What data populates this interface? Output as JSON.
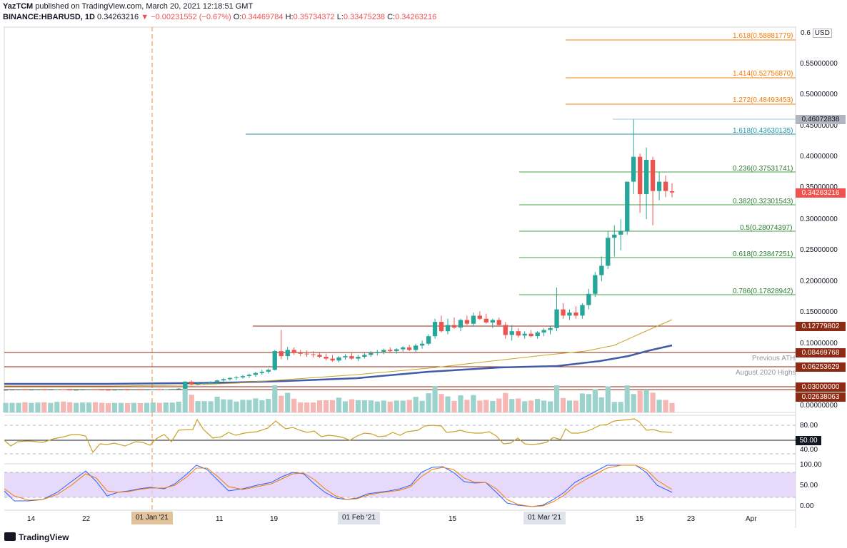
{
  "header": {
    "author": "YazTCM",
    "published": "published on TradingView.com, March 20, 2021 12:18:51 GMT",
    "symbol": "BINANCE:HBARUSD, 1D",
    "last": "0.34263216",
    "change": "▼ −0.00231552 (−0.67%)",
    "o_label": "O:",
    "o": "0.34469784",
    "h_label": "H:",
    "h": "0.35734372",
    "l_label": "L:",
    "l": "0.33475238",
    "c_label": "C:",
    "c": "0.34263216"
  },
  "price_axis": {
    "currency": "USD",
    "labels": [
      "0.6",
      "0.55000000",
      "0.50000000",
      "0.45000000",
      "0.40000000",
      "0.35000000",
      "0.30000000",
      "0.25000000",
      "0.20000000",
      "0.15000000",
      "0.10000000",
      "0.00000000"
    ]
  },
  "price_tags": [
    {
      "text": "0.46072838",
      "color": "#b2b5be",
      "textcolor": "#131722"
    },
    {
      "text": "0.34263216",
      "color": "#ef5350",
      "textcolor": "#ffffff"
    },
    {
      "text": "0.12779802",
      "color": "#8d2a13",
      "textcolor": "#ffffff"
    },
    {
      "text": "0.08469768",
      "color": "#8d2a13",
      "textcolor": "#ffffff"
    },
    {
      "text": "0.06253629",
      "color": "#8d2a13",
      "textcolor": "#ffffff"
    },
    {
      "text": "0.03000000",
      "color": "#8d2a13",
      "textcolor": "#ffffff"
    },
    {
      "text": "0.02638063",
      "color": "#8d2a13",
      "textcolor": "#ffffff"
    }
  ],
  "fib_extension": [
    {
      "text": "1.618(0.58881779)",
      "color": "#f57c00"
    },
    {
      "text": "1.414(0.52756870)",
      "color": "#f57c00"
    },
    {
      "text": "1.272(0.48493453)",
      "color": "#f57c00"
    },
    {
      "text": "1.618(0.43630135)",
      "color": "#2196a8"
    }
  ],
  "fib_retracement": [
    {
      "text": "0.236(0.37531741)"
    },
    {
      "text": "0.382(0.32301543)"
    },
    {
      "text": "0.5(0.28074397)"
    },
    {
      "text": "0.618(0.23847251)"
    },
    {
      "text": "0.786(0.17828942)"
    }
  ],
  "annotations": {
    "previous_ath": "Previous ATH",
    "august_highs": "August 2020 Highs"
  },
  "rsi_axis": {
    "a": "80.00",
    "b": "50.00",
    "c": "40.00"
  },
  "stoch_axis": {
    "a": "100.00",
    "b": "50.00",
    "c": "0.00"
  },
  "time_axis": {
    "labels": [
      "14",
      "22",
      "11",
      "19",
      "15",
      "15",
      "23",
      "Apr"
    ],
    "highlight_jan": "01 Jan '21",
    "feb": "01 Feb '21",
    "mar": "01 Mar '21"
  },
  "footer": {
    "brand": "TradingView"
  },
  "chart_data": {
    "type": "candlestick",
    "symbol": "HBARUSD",
    "interval": "1D",
    "ylim": [
      0,
      0.62
    ],
    "indicators": [
      "Volume",
      "SMA",
      "RSI",
      "Stoch RSI"
    ],
    "candles_ohlc_sample": [
      [
        0.0258,
        0.0262,
        0.0252,
        0.026
      ],
      [
        0.026,
        0.0265,
        0.0255,
        0.0262
      ],
      [
        0.0262,
        0.0268,
        0.0258,
        0.0264
      ],
      [
        0.0264,
        0.027,
        0.0258,
        0.026
      ],
      [
        0.026,
        0.0266,
        0.0254,
        0.0262
      ],
      [
        0.0262,
        0.0268,
        0.0257,
        0.0265
      ],
      [
        0.0265,
        0.027,
        0.0259,
        0.0261
      ],
      [
        0.0261,
        0.0267,
        0.0256,
        0.0263
      ],
      [
        0.0263,
        0.0271,
        0.0258,
        0.0268
      ],
      [
        0.0268,
        0.0272,
        0.026,
        0.0262
      ],
      [
        0.0262,
        0.0266,
        0.0255,
        0.0258
      ],
      [
        0.0258,
        0.0263,
        0.0252,
        0.026
      ],
      [
        0.026,
        0.0265,
        0.0254,
        0.0263
      ],
      [
        0.0263,
        0.0268,
        0.0258,
        0.0266
      ],
      [
        0.0266,
        0.027,
        0.026,
        0.0262
      ],
      [
        0.0262,
        0.0267,
        0.0256,
        0.026
      ],
      [
        0.026,
        0.0264,
        0.0254,
        0.0259
      ],
      [
        0.0259,
        0.0263,
        0.0253,
        0.0261
      ],
      [
        0.0261,
        0.0266,
        0.0255,
        0.0263
      ],
      [
        0.0263,
        0.0268,
        0.0258,
        0.0262
      ],
      [
        0.0262,
        0.0267,
        0.0256,
        0.0264
      ],
      [
        0.0264,
        0.027,
        0.0259,
        0.0263
      ],
      [
        0.0263,
        0.0268,
        0.0257,
        0.0265
      ],
      [
        0.0265,
        0.0272,
        0.026,
        0.0268
      ],
      [
        0.0268,
        0.0274,
        0.0262,
        0.0266
      ],
      [
        0.0266,
        0.0271,
        0.026,
        0.0269
      ],
      [
        0.0269,
        0.0276,
        0.0264,
        0.0272
      ],
      [
        0.0272,
        0.0285,
        0.0268,
        0.0278
      ],
      [
        0.0278,
        0.04,
        0.0275,
        0.039
      ],
      [
        0.039,
        0.041,
        0.033,
        0.035
      ],
      [
        0.035,
        0.038,
        0.033,
        0.036
      ],
      [
        0.036,
        0.039,
        0.034,
        0.037
      ],
      [
        0.037,
        0.04,
        0.035,
        0.038
      ],
      [
        0.038,
        0.042,
        0.036,
        0.041
      ],
      [
        0.041,
        0.045,
        0.039,
        0.043
      ],
      [
        0.043,
        0.046,
        0.041,
        0.045
      ],
      [
        0.045,
        0.048,
        0.042,
        0.046
      ],
      [
        0.046,
        0.05,
        0.044,
        0.048
      ],
      [
        0.048,
        0.052,
        0.045,
        0.05
      ],
      [
        0.05,
        0.055,
        0.047,
        0.053
      ],
      [
        0.053,
        0.058,
        0.05,
        0.055
      ],
      [
        0.055,
        0.06,
        0.052,
        0.058
      ],
      [
        0.058,
        0.09,
        0.057,
        0.088
      ],
      [
        0.088,
        0.122,
        0.075,
        0.08
      ],
      [
        0.08,
        0.095,
        0.074,
        0.09
      ],
      [
        0.09,
        0.094,
        0.082,
        0.085
      ],
      [
        0.085,
        0.09,
        0.08,
        0.084
      ],
      [
        0.084,
        0.089,
        0.079,
        0.083
      ],
      [
        0.083,
        0.088,
        0.078,
        0.082
      ],
      [
        0.082,
        0.087,
        0.077,
        0.079
      ],
      [
        0.079,
        0.084,
        0.073,
        0.076
      ],
      [
        0.076,
        0.082,
        0.071,
        0.073
      ],
      [
        0.073,
        0.08,
        0.07,
        0.078
      ],
      [
        0.078,
        0.083,
        0.074,
        0.08
      ],
      [
        0.08,
        0.085,
        0.074,
        0.076
      ],
      [
        0.076,
        0.082,
        0.072,
        0.079
      ],
      [
        0.079,
        0.085,
        0.076,
        0.082
      ],
      [
        0.082,
        0.088,
        0.079,
        0.085
      ],
      [
        0.085,
        0.09,
        0.081,
        0.087
      ],
      [
        0.087,
        0.092,
        0.083,
        0.09
      ],
      [
        0.09,
        0.094,
        0.086,
        0.088
      ],
      [
        0.088,
        0.093,
        0.084,
        0.091
      ],
      [
        0.091,
        0.096,
        0.087,
        0.094
      ],
      [
        0.094,
        0.098,
        0.088,
        0.09
      ],
      [
        0.09,
        0.1,
        0.086,
        0.097
      ],
      [
        0.097,
        0.105,
        0.092,
        0.1
      ],
      [
        0.1,
        0.115,
        0.097,
        0.112
      ],
      [
        0.112,
        0.14,
        0.108,
        0.135
      ],
      [
        0.135,
        0.145,
        0.118,
        0.12
      ],
      [
        0.12,
        0.14,
        0.115,
        0.13
      ],
      [
        0.13,
        0.142,
        0.124,
        0.126
      ],
      [
        0.126,
        0.14,
        0.12,
        0.138
      ],
      [
        0.138,
        0.145,
        0.13,
        0.132
      ],
      [
        0.132,
        0.15,
        0.128,
        0.145
      ],
      [
        0.145,
        0.152,
        0.138,
        0.14
      ],
      [
        0.14,
        0.148,
        0.132,
        0.134
      ],
      [
        0.134,
        0.14,
        0.125,
        0.138
      ],
      [
        0.138,
        0.142,
        0.128,
        0.13
      ],
      [
        0.13,
        0.135,
        0.108,
        0.114
      ],
      [
        0.114,
        0.13,
        0.105,
        0.12
      ],
      [
        0.12,
        0.125,
        0.11,
        0.113
      ],
      [
        0.113,
        0.12,
        0.108,
        0.116
      ],
      [
        0.116,
        0.122,
        0.11,
        0.112
      ],
      [
        0.112,
        0.12,
        0.108,
        0.118
      ],
      [
        0.118,
        0.125,
        0.112,
        0.122
      ],
      [
        0.122,
        0.128,
        0.115,
        0.125
      ],
      [
        0.125,
        0.19,
        0.12,
        0.155
      ],
      [
        0.155,
        0.165,
        0.14,
        0.145
      ],
      [
        0.145,
        0.155,
        0.138,
        0.15
      ],
      [
        0.15,
        0.16,
        0.14,
        0.145
      ],
      [
        0.145,
        0.165,
        0.14,
        0.162
      ],
      [
        0.162,
        0.188,
        0.155,
        0.18
      ],
      [
        0.18,
        0.215,
        0.175,
        0.21
      ],
      [
        0.21,
        0.24,
        0.2,
        0.225
      ],
      [
        0.225,
        0.28,
        0.22,
        0.27
      ],
      [
        0.27,
        0.29,
        0.24,
        0.275
      ],
      [
        0.275,
        0.3,
        0.25,
        0.28
      ],
      [
        0.28,
        0.36,
        0.275,
        0.36
      ],
      [
        0.36,
        0.46,
        0.34,
        0.4
      ],
      [
        0.4,
        0.405,
        0.31,
        0.34
      ],
      [
        0.34,
        0.415,
        0.3,
        0.395
      ],
      [
        0.395,
        0.4,
        0.29,
        0.345
      ],
      [
        0.345,
        0.375,
        0.33,
        0.36
      ],
      [
        0.36,
        0.37,
        0.335,
        0.345
      ],
      [
        0.3447,
        0.3573,
        0.3348,
        0.3426
      ]
    ]
  }
}
